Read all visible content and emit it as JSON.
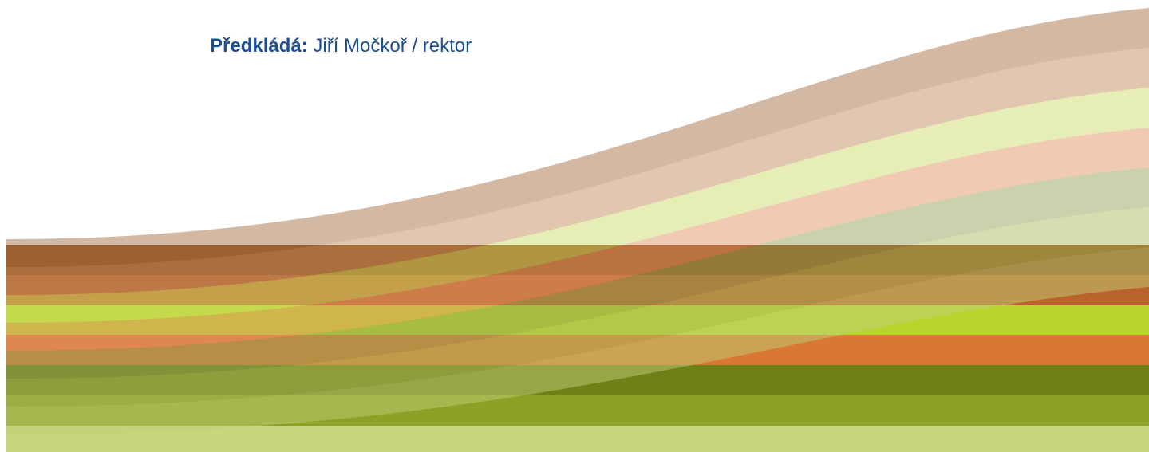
{
  "presenter": {
    "label": "Předkládá:",
    "name": "Jiří Močkoř / rektor"
  }
}
